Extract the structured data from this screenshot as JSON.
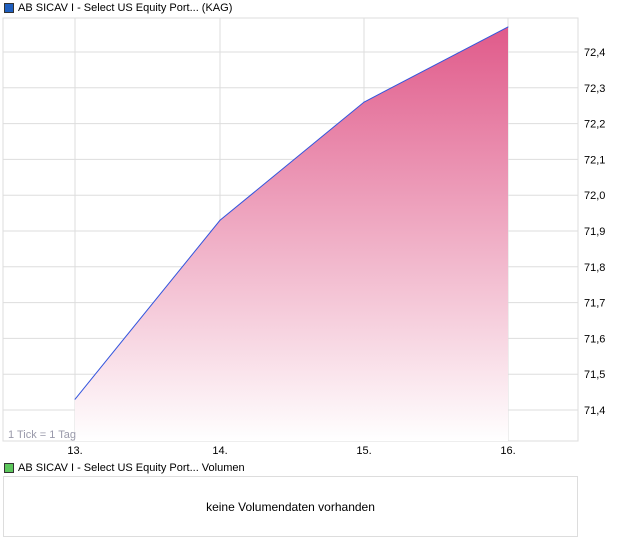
{
  "legend_main": {
    "label": "AB SICAV I - Select US Equity Port... (KAG)",
    "color": "#1f5fbf"
  },
  "legend_volume": {
    "label": "AB SICAV I - Select US Equity Port... Volumen",
    "color": "#5cc75c"
  },
  "tick_note": "1 Tick = 1 Tag",
  "volume_message": "keine Volumendaten vorhanden",
  "chart_data": {
    "type": "area",
    "x": [
      "13.",
      "14.",
      "15.",
      "16."
    ],
    "values": [
      71.43,
      71.93,
      72.26,
      72.47
    ],
    "yticks": [
      "72,4",
      "72,3",
      "72,2",
      "72,1",
      "72,0",
      "71,9",
      "71,8",
      "71,7",
      "71,6",
      "71,5",
      "71,4"
    ],
    "ytick_values": [
      72.4,
      72.3,
      72.2,
      72.1,
      72.0,
      71.9,
      71.8,
      71.7,
      71.6,
      71.5,
      71.4
    ],
    "ylim": [
      71.31,
      72.5
    ],
    "grid": true,
    "line_color": "#3355dd",
    "fill_top_color": "#e05a8a",
    "fill_bottom_color": "#ffffff"
  }
}
